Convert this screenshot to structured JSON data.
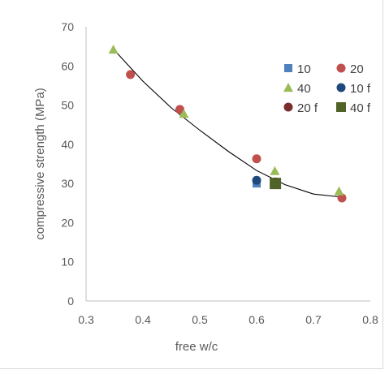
{
  "chart_data": {
    "type": "scatter",
    "title": "",
    "xlabel": "free w/c",
    "ylabel": "compressive strength (MPa)",
    "xlim": [
      0.3,
      0.8
    ],
    "ylim": [
      0,
      70
    ],
    "xticks": [
      0.3,
      0.4,
      0.5,
      0.6,
      0.7,
      0.8
    ],
    "xtick_labels": [
      "0.3",
      "0.4",
      "0.5",
      "0.6",
      "0.7",
      "0.8"
    ],
    "yticks": [
      0,
      10,
      20,
      30,
      40,
      50,
      60,
      70
    ],
    "ytick_labels": [
      "0",
      "10",
      "20",
      "30",
      "40",
      "50",
      "60",
      "70"
    ],
    "grid": false,
    "legend_position": "top-right",
    "series": [
      {
        "name": "10",
        "marker": "square",
        "color": "#4f81bd",
        "size": 10,
        "points": [
          {
            "x": 0.6,
            "y": 30.0
          }
        ]
      },
      {
        "name": "20",
        "marker": "circle",
        "color": "#c0504d",
        "size": 11,
        "points": [
          {
            "x": 0.378,
            "y": 57.8
          },
          {
            "x": 0.465,
            "y": 48.9
          },
          {
            "x": 0.6,
            "y": 36.3
          },
          {
            "x": 0.75,
            "y": 26.3
          }
        ]
      },
      {
        "name": "40",
        "marker": "triangle",
        "color": "#9bbb59",
        "size": 12,
        "points": [
          {
            "x": 0.348,
            "y": 64.2
          },
          {
            "x": 0.472,
            "y": 47.8
          },
          {
            "x": 0.632,
            "y": 33.2
          },
          {
            "x": 0.745,
            "y": 28.0
          }
        ]
      },
      {
        "name": "10 f",
        "marker": "circle",
        "color": "#1f497d",
        "size": 11,
        "points": [
          {
            "x": 0.6,
            "y": 30.8
          }
        ]
      },
      {
        "name": "20 f",
        "marker": "circle",
        "color": "#7b2c2c",
        "size": 11,
        "points": [
          {
            "x": 0.633,
            "y": 30.4
          }
        ]
      },
      {
        "name": "40 f",
        "marker": "square",
        "color": "#4f6228",
        "size": 14,
        "points": [
          {
            "x": 0.633,
            "y": 30.0
          }
        ]
      }
    ],
    "trendline": {
      "type": "polynomial",
      "color": "#000000",
      "x": [
        0.35,
        0.4,
        0.45,
        0.5,
        0.55,
        0.6,
        0.65,
        0.7,
        0.75
      ],
      "y": [
        64.0,
        56.1,
        49.3,
        43.6,
        38.2,
        33.3,
        29.7,
        27.3,
        26.5
      ]
    }
  }
}
